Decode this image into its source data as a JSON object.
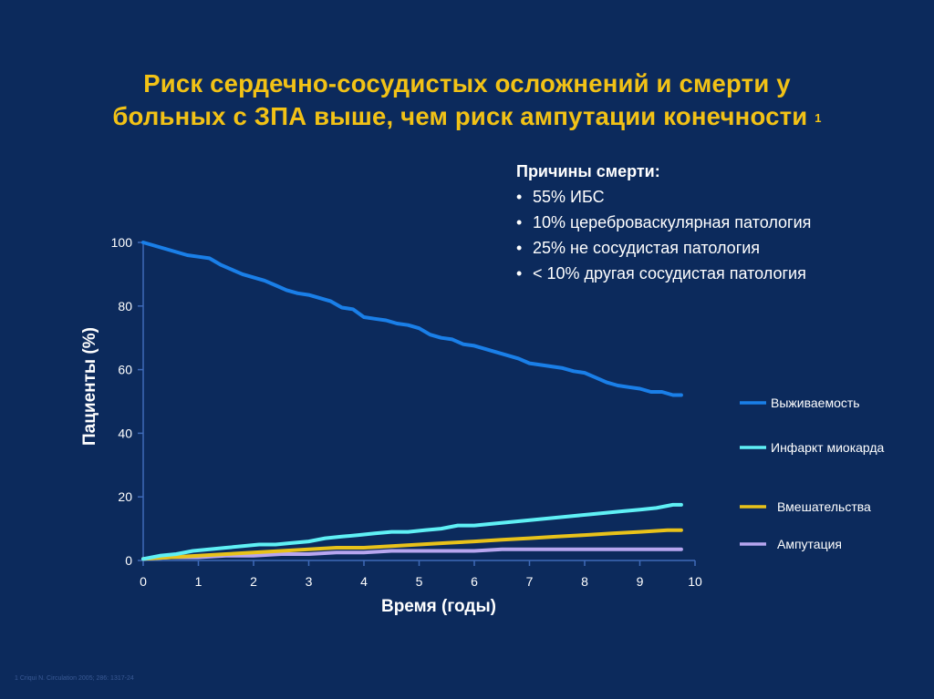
{
  "title_line1": "Риск сердечно-сосудистых осложнений и смерти у",
  "title_line2": "больных с ЗПА выше, чем риск ампутации конечности",
  "title_sup": "1",
  "causes": {
    "title": "Причины смерти:",
    "items": [
      "55% ИБС",
      "10% цереброваскулярная патология",
      "25% не сосудистая патология",
      "< 10% другая сосудистая патология"
    ]
  },
  "footnote": "1 Criqui N. Circulation 2005; 286: 1317-24",
  "chart_data": {
    "type": "line",
    "xlabel": "Время (годы)",
    "ylabel": "Пациенты (%)",
    "xlim": [
      0,
      10
    ],
    "ylim": [
      0,
      100
    ],
    "xticks": [
      "0",
      "1",
      "2",
      "3",
      "4",
      "5",
      "6",
      "7",
      "8",
      "9",
      "10"
    ],
    "yticks": [
      "0",
      "20",
      "40",
      "60",
      "80",
      "100"
    ],
    "legend_position": "right",
    "series": [
      {
        "name": "Выживаемость",
        "color": "#1a7fe8",
        "points": [
          [
            0,
            100
          ],
          [
            0.2,
            99
          ],
          [
            0.4,
            98
          ],
          [
            0.6,
            97
          ],
          [
            0.8,
            96
          ],
          [
            1.0,
            95.5
          ],
          [
            1.2,
            95
          ],
          [
            1.4,
            93
          ],
          [
            1.6,
            91.5
          ],
          [
            1.8,
            90
          ],
          [
            2.0,
            89
          ],
          [
            2.2,
            88
          ],
          [
            2.4,
            86.5
          ],
          [
            2.6,
            85
          ],
          [
            2.8,
            84
          ],
          [
            3.0,
            83.5
          ],
          [
            3.2,
            82.5
          ],
          [
            3.4,
            81.5
          ],
          [
            3.6,
            79.5
          ],
          [
            3.8,
            79
          ],
          [
            4.0,
            76.5
          ],
          [
            4.2,
            76
          ],
          [
            4.4,
            75.5
          ],
          [
            4.6,
            74.5
          ],
          [
            4.8,
            74
          ],
          [
            5.0,
            73
          ],
          [
            5.2,
            71
          ],
          [
            5.4,
            70
          ],
          [
            5.6,
            69.5
          ],
          [
            5.8,
            68
          ],
          [
            6.0,
            67.5
          ],
          [
            6.2,
            66.5
          ],
          [
            6.4,
            65.5
          ],
          [
            6.6,
            64.5
          ],
          [
            6.8,
            63.5
          ],
          [
            7.0,
            62
          ],
          [
            7.2,
            61.5
          ],
          [
            7.4,
            61
          ],
          [
            7.6,
            60.5
          ],
          [
            7.8,
            59.5
          ],
          [
            8.0,
            59
          ],
          [
            8.2,
            57.5
          ],
          [
            8.4,
            56
          ],
          [
            8.6,
            55
          ],
          [
            8.8,
            54.5
          ],
          [
            9.0,
            54
          ],
          [
            9.2,
            53
          ],
          [
            9.4,
            53
          ],
          [
            9.6,
            52
          ],
          [
            9.75,
            52
          ]
        ]
      },
      {
        "name": "Инфаркт миокарда",
        "color": "#5ff0f5",
        "points": [
          [
            0,
            0.5
          ],
          [
            0.3,
            1.5
          ],
          [
            0.6,
            2
          ],
          [
            0.9,
            3
          ],
          [
            1.2,
            3.5
          ],
          [
            1.5,
            4
          ],
          [
            1.8,
            4.5
          ],
          [
            2.1,
            5
          ],
          [
            2.4,
            5
          ],
          [
            2.7,
            5.5
          ],
          [
            3.0,
            6
          ],
          [
            3.3,
            7
          ],
          [
            3.6,
            7.5
          ],
          [
            3.9,
            8
          ],
          [
            4.2,
            8.5
          ],
          [
            4.5,
            9
          ],
          [
            4.8,
            9
          ],
          [
            5.1,
            9.5
          ],
          [
            5.4,
            10
          ],
          [
            5.7,
            11
          ],
          [
            6.0,
            11
          ],
          [
            6.3,
            11.5
          ],
          [
            6.6,
            12
          ],
          [
            6.9,
            12.5
          ],
          [
            7.2,
            13
          ],
          [
            7.5,
            13.5
          ],
          [
            7.8,
            14
          ],
          [
            8.1,
            14.5
          ],
          [
            8.4,
            15
          ],
          [
            8.7,
            15.5
          ],
          [
            9.0,
            16
          ],
          [
            9.3,
            16.5
          ],
          [
            9.6,
            17.5
          ],
          [
            9.75,
            17.5
          ]
        ]
      },
      {
        "name": "Вмешательства",
        "color": "#e8c21a",
        "points": [
          [
            0,
            0.5
          ],
          [
            0.5,
            1
          ],
          [
            1.0,
            1.5
          ],
          [
            1.5,
            2
          ],
          [
            2.0,
            2.5
          ],
          [
            2.5,
            3
          ],
          [
            3.0,
            3.5
          ],
          [
            3.5,
            4
          ],
          [
            4.0,
            4
          ],
          [
            4.5,
            4.5
          ],
          [
            5.0,
            5
          ],
          [
            5.5,
            5.5
          ],
          [
            6.0,
            6
          ],
          [
            6.5,
            6.5
          ],
          [
            7.0,
            7
          ],
          [
            7.5,
            7.5
          ],
          [
            8.0,
            8
          ],
          [
            8.5,
            8.5
          ],
          [
            9.0,
            9
          ],
          [
            9.5,
            9.5
          ],
          [
            9.75,
            9.5
          ]
        ]
      },
      {
        "name": "Ампутация",
        "color": "#b7a6f0",
        "points": [
          [
            0,
            0.5
          ],
          [
            0.5,
            1
          ],
          [
            1.0,
            1
          ],
          [
            1.5,
            1.5
          ],
          [
            2.0,
            1.5
          ],
          [
            2.5,
            2
          ],
          [
            3.0,
            2
          ],
          [
            3.5,
            2.5
          ],
          [
            4.0,
            2.5
          ],
          [
            4.5,
            3
          ],
          [
            5.0,
            3
          ],
          [
            5.5,
            3
          ],
          [
            6.0,
            3
          ],
          [
            6.5,
            3.5
          ],
          [
            7.0,
            3.5
          ],
          [
            7.5,
            3.5
          ],
          [
            8.0,
            3.5
          ],
          [
            8.5,
            3.5
          ],
          [
            9.0,
            3.5
          ],
          [
            9.5,
            3.5
          ],
          [
            9.75,
            3.5
          ]
        ]
      }
    ]
  }
}
